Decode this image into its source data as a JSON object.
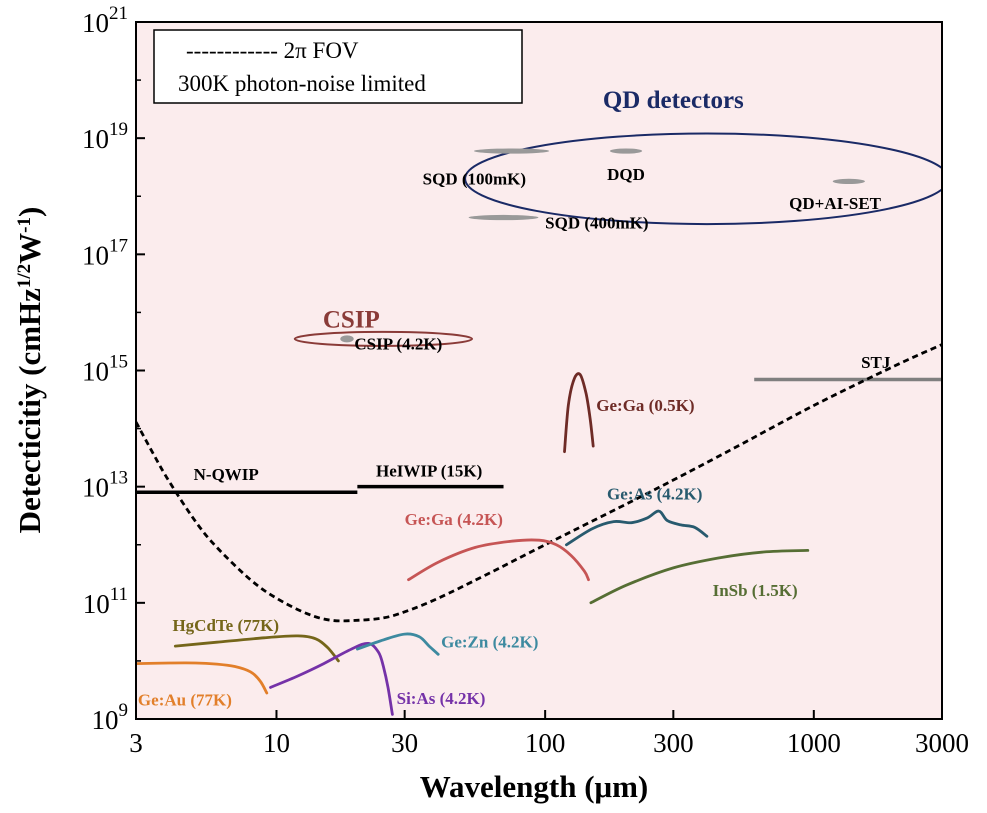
{
  "chart_data": {
    "type": "line",
    "xlabel": "Wavelength (μm)",
    "ylabel": "Detecticitiy (cmHz¹ᐟ²W⁻¹)",
    "ylabel_parts": {
      "main": "Detecticitiy (cmHz",
      "sup1": "1/2",
      "mid": "W",
      "sup2": "-1",
      "end": ")"
    },
    "x_scale": "log",
    "y_scale": "log",
    "xlim": [
      3,
      3000
    ],
    "ylim": [
      1000000000.0,
      1e+21
    ],
    "x_ticks": [
      {
        "value": 3,
        "label": "3"
      },
      {
        "value": 10,
        "label": "10"
      },
      {
        "value": 30,
        "label": "30"
      },
      {
        "value": 100,
        "label": "100"
      },
      {
        "value": 300,
        "label": "300"
      },
      {
        "value": 1000,
        "label": "1000"
      },
      {
        "value": 3000,
        "label": "3000"
      }
    ],
    "y_ticks": [
      {
        "value": 1000000000.0,
        "base": "10",
        "exp": "9"
      },
      {
        "value": 100000000000.0,
        "base": "10",
        "exp": "11"
      },
      {
        "value": 10000000000000.0,
        "base": "10",
        "exp": "13"
      },
      {
        "value": 1000000000000000.0,
        "base": "10",
        "exp": "15"
      },
      {
        "value": 1e+17,
        "base": "10",
        "exp": "17"
      },
      {
        "value": 1e+19,
        "base": "10",
        "exp": "19"
      },
      {
        "value": 1e+21,
        "base": "10",
        "exp": "21"
      }
    ],
    "legend": {
      "placement": "top-left",
      "line1": "------------ 2π FOV",
      "line2": "300K photon-noise limited"
    },
    "background_color": "#fbeced",
    "reference_curve": {
      "style": "dashed",
      "color": "#000000",
      "x": [
        3,
        3.5,
        4,
        5,
        6,
        8,
        10,
        13,
        16,
        20,
        25,
        30,
        40,
        60,
        100,
        200,
        300,
        500,
        1000,
        2000,
        3000
      ],
      "y": [
        130000000000000.0,
        35000000000000.0,
        12000000000000.0,
        2500000000000.0,
        900000000000.0,
        250000000000.0,
        120000000000.0,
        65000000000.0,
        50000000000.0,
        50000000000.0,
        55000000000.0,
        70000000000.0,
        120000000000.0,
        300000000000.0,
        1000000000000.0,
        5000000000000.0,
        13000000000000.0,
        45000000000000.0,
        250000000000000.0,
        1200000000000000.0,
        2800000000000000.0
      ]
    },
    "series": [
      {
        "name": "Ge:Au (77K)",
        "color": "#e27f2a",
        "x": [
          3,
          4,
          5,
          6,
          7,
          8,
          8.7,
          9.2
        ],
        "y": [
          9000000000.0,
          9200000000.0,
          9200000000.0,
          8800000000.0,
          8000000000.0,
          6500000000.0,
          4500000000.0,
          2800000000.0
        ],
        "label": {
          "text": "Ge:Au (77K)",
          "x": 3.05,
          "y": 1700000000.0,
          "anchor": "start"
        }
      },
      {
        "name": "HgCdTe (77K)",
        "color": "#75661a",
        "x": [
          4.2,
          6,
          9,
          12,
          14,
          15.5,
          17
        ],
        "y": [
          18000000000.0,
          21000000000.0,
          25000000000.0,
          27000000000.0,
          24000000000.0,
          17000000000.0,
          10000000000.0
        ],
        "label": {
          "text": "HgCdTe (77K)",
          "x": 4.1,
          "y": 33000000000.0,
          "anchor": "start"
        }
      },
      {
        "name": "Si:As (4.2K)",
        "color": "#7532a8",
        "x": [
          9.5,
          12,
          15,
          19,
          22,
          24,
          25,
          26,
          27
        ],
        "y": [
          3500000000.0,
          5500000000.0,
          9000000000.0,
          16000000000.0,
          20000000000.0,
          14000000000.0,
          8000000000.0,
          3500000000.0,
          1200000000.0
        ],
        "label": {
          "text": "Si:As (4.2K)",
          "x": 28,
          "y": 1800000000.0,
          "anchor": "start"
        }
      },
      {
        "name": "Ge:Zn (4.2K)",
        "color": "#3d8aa0",
        "x": [
          20,
          25,
          30,
          34,
          37,
          40
        ],
        "y": [
          16000000000.0,
          23000000000.0,
          29000000000.0,
          26000000000.0,
          18000000000.0,
          13000000000.0
        ],
        "label": {
          "text": "Ge:Zn (4.2K)",
          "x": 41,
          "y": 17000000000.0,
          "anchor": "start"
        }
      },
      {
        "name": "Ge:Ga (4.2K)",
        "color": "#c65555",
        "x": [
          31,
          40,
          55,
          75,
          95,
          110,
          125,
          140,
          145
        ],
        "y": [
          250000000000.0,
          500000000000.0,
          900000000000.0,
          1150000000000.0,
          1200000000000.0,
          1000000000000.0,
          650000000000.0,
          350000000000.0,
          250000000000.0
        ],
        "label": {
          "text": "Ge:Ga (4.2K)",
          "x": 30,
          "y": 2200000000000.0,
          "anchor": "start"
        }
      },
      {
        "name": "Ge:As (4.2K)",
        "color": "#285a6e",
        "x": [
          120,
          150,
          180,
          210,
          240,
          265,
          285,
          320,
          360,
          400
        ],
        "y": [
          1000000000000.0,
          1900000000000.0,
          2500000000000.0,
          2400000000000.0,
          2900000000000.0,
          3800000000000.0,
          2600000000000.0,
          2200000000000.0,
          2000000000000.0,
          1400000000000.0
        ],
        "label": {
          "text": "Ge:As (4.2K)",
          "x": 170,
          "y": 6000000000000.0,
          "anchor": "start"
        }
      },
      {
        "name": "InSb (1.5K)",
        "color": "#566e34",
        "x": [
          148,
          200,
          300,
          450,
          650,
          950
        ],
        "y": [
          100000000000.0,
          200000000000.0,
          400000000000.0,
          600000000000.0,
          750000000000.0,
          800000000000.0
        ],
        "label": {
          "text": "InSb (1.5K)",
          "x": 420,
          "y": 130000000000.0,
          "anchor": "start"
        }
      },
      {
        "name": "Ge:Ga (0.5K)",
        "color": "#6e2b26",
        "x": [
          118,
          122,
          128,
          135,
          142,
          147,
          151
        ],
        "y": [
          40000000000000.0,
          250000000000000.0,
          700000000000000.0,
          850000000000000.0,
          400000000000000.0,
          150000000000000.0,
          50000000000000.0
        ],
        "label": {
          "text": "Ge:Ga (0.5K)",
          "x": 155,
          "y": 200000000000000.0,
          "anchor": "start"
        }
      }
    ],
    "horizontal_lines": [
      {
        "name": "N-QWIP",
        "color": "#000000",
        "x": [
          3,
          20
        ],
        "y": 8000000000000.0,
        "label": {
          "text": "N-QWIP",
          "x": 6.5,
          "y": 13000000000000.0,
          "anchor": "middle"
        }
      },
      {
        "name": "HeIWIP (15K)",
        "color": "#000000",
        "x": [
          20,
          70
        ],
        "y": 10000000000000.0,
        "label": {
          "text": "HeIWIP (15K)",
          "x": 37,
          "y": 15000000000000.0,
          "anchor": "middle"
        }
      },
      {
        "name": "STJ",
        "color": "#7f7f7f",
        "x": [
          600,
          3000
        ],
        "y": 700000000000000.0,
        "label": {
          "text": "STJ",
          "x": 1700,
          "y": 1100000000000000.0,
          "anchor": "middle"
        }
      }
    ],
    "groups": [
      {
        "name": "QD detectors",
        "title": "QD detectors",
        "title_color": "#1a2a66",
        "ellipse_color": "#1a2a66",
        "title_pos": {
          "x": 300,
          "y": 3.3e+19
        },
        "center": {
          "x": 400,
          "y": 2e+18
        },
        "rx_decades": 0.9,
        "ry_decades": 0.78
      },
      {
        "name": "CSIP",
        "title": "CSIP",
        "title_color": "#8a3b38",
        "ellipse_color": "#8a3b38",
        "title_pos": {
          "x": 19,
          "y": 5500000000000000.0
        },
        "center": {
          "x": 25,
          "y": 3500000000000000.0
        },
        "rx_decades": 0.33,
        "ry_decades": 0.12
      }
    ],
    "point_groups": [
      {
        "name": "SQD (100mK)",
        "x": 75,
        "y": 6e+18,
        "rx_decades": 0.14,
        "ry_decades": 0.045,
        "label": {
          "text": "SQD (100mK)",
          "x": 35,
          "y": 1.6e+18,
          "anchor": "start"
        }
      },
      {
        "name": "DQD",
        "x": 200,
        "y": 6e+18,
        "rx_decades": 0.06,
        "ry_decades": 0.045,
        "label": {
          "text": "DQD",
          "x": 200,
          "y": 1.9e+18,
          "anchor": "middle"
        }
      },
      {
        "name": "QD+Al-SET",
        "x": 1350,
        "y": 1.8e+18,
        "rx_decades": 0.06,
        "ry_decades": 0.045,
        "label": {
          "text": "QD+AI-SET",
          "x": 1200,
          "y": 6e+17,
          "anchor": "middle"
        }
      },
      {
        "name": "SQD (400mK)",
        "x": 70,
        "y": 4.3e+17,
        "rx_decades": 0.13,
        "ry_decades": 0.045,
        "label": {
          "text": "SQD (400mK)",
          "x": 100,
          "y": 2.8e+17,
          "anchor": "start"
        }
      },
      {
        "name": "CSIP (4.2K)",
        "x": 18.3,
        "y": 3500000000000000.0,
        "rx_decades": 0.025,
        "ry_decades": 0.06,
        "label": {
          "text": "CSIP (4.2K)",
          "x": 19.5,
          "y": 2300000000000000.0,
          "anchor": "start"
        }
      }
    ]
  }
}
